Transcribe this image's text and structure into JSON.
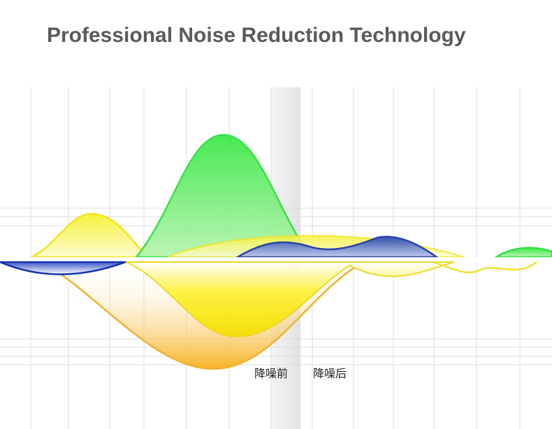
{
  "title": "Professional Noise Reduction Technology",
  "labels": {
    "before": "降噪前",
    "after": "降噪后"
  }
}
